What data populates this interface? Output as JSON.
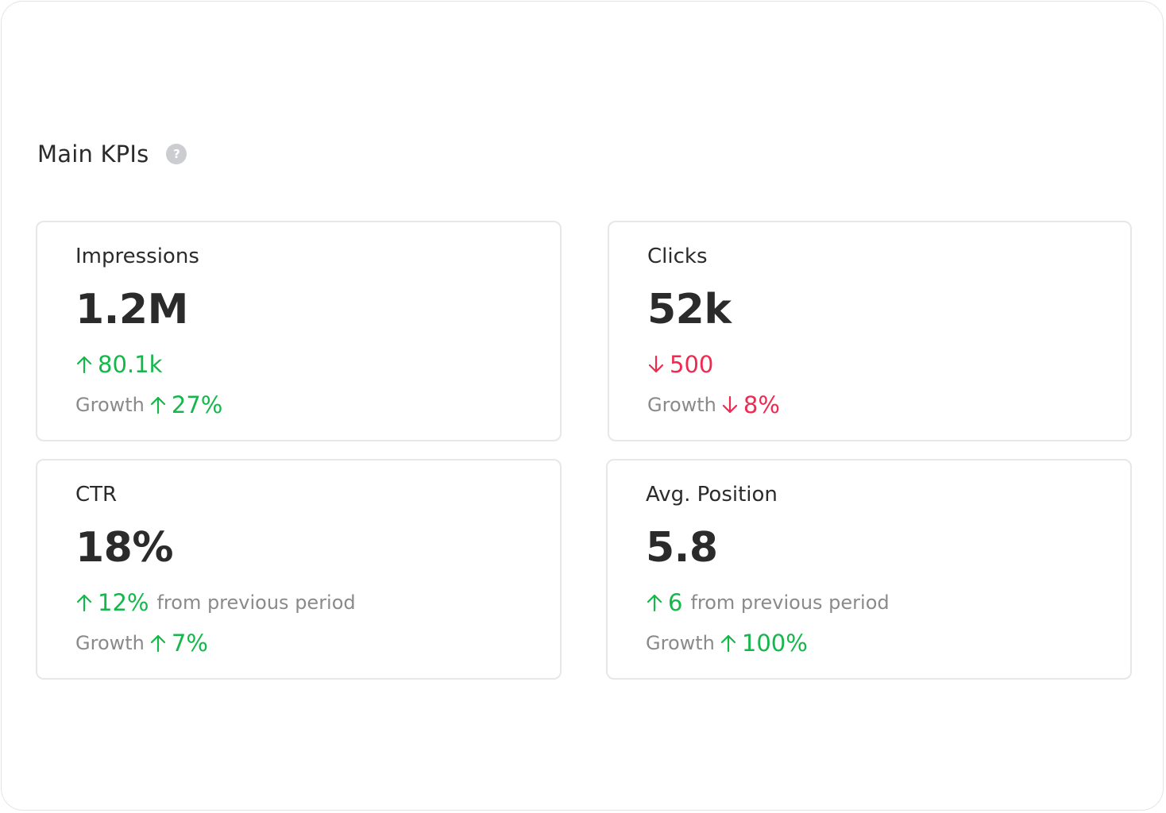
{
  "section": {
    "title": "Main KPIs",
    "help_icon": "question-mark-icon",
    "help_glyph": "?"
  },
  "colors": {
    "positive": "#14b84a",
    "negative": "#f0294f",
    "muted": "#8a8a8a",
    "text": "#2b2b2b"
  },
  "kpis": [
    {
      "label": "Impressions",
      "value": "1.2M",
      "change_direction": "up",
      "change": "80.1k",
      "change_suffix": "",
      "growth_label": "Growth",
      "growth_direction": "up",
      "growth": "27%"
    },
    {
      "label": "Clicks",
      "value": "52k",
      "change_direction": "down",
      "change": "500",
      "change_suffix": "",
      "growth_label": "Growth",
      "growth_direction": "down",
      "growth": "8%"
    },
    {
      "label": "CTR",
      "value": "18%",
      "change_direction": "up",
      "change": "12%",
      "change_suffix": "from previous period",
      "growth_label": "Growth",
      "growth_direction": "up",
      "growth": "7%"
    },
    {
      "label": "Avg. Position",
      "value": "5.8",
      "change_direction": "up",
      "change": "6",
      "change_suffix": "from previous period",
      "growth_label": "Growth",
      "growth_direction": "up",
      "growth": "100%"
    }
  ]
}
